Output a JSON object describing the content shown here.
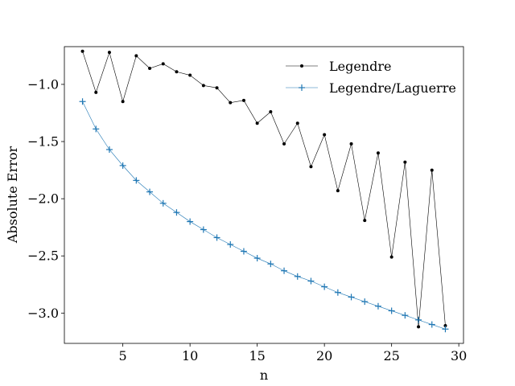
{
  "chart_data": {
    "type": "line",
    "title": "",
    "xlabel": "n",
    "ylabel": "Absolute Error",
    "xlim": [
      0.65,
      30.35
    ],
    "ylim": [
      -3.265,
      -0.67
    ],
    "x_ticks": [
      5,
      10,
      15,
      20,
      25,
      30
    ],
    "x_tick_labels": [
      "5",
      "10",
      "15",
      "20",
      "25",
      "30"
    ],
    "y_ticks": [
      -3.0,
      -2.5,
      -2.0,
      -1.5,
      -1.0
    ],
    "y_tick_labels": [
      "−3.0",
      "−2.5",
      "−2.0",
      "−1.5",
      "−1.0"
    ],
    "grid": false,
    "legend_position": "top-right",
    "x": [
      2,
      3,
      4,
      5,
      6,
      7,
      8,
      9,
      10,
      11,
      12,
      13,
      14,
      15,
      16,
      17,
      18,
      19,
      20,
      21,
      22,
      23,
      24,
      25,
      26,
      27,
      28,
      29
    ],
    "series": [
      {
        "name": "Legendre",
        "color": "#000000",
        "marker": "dot",
        "values": [
          -0.71,
          -1.07,
          -0.72,
          -1.15,
          -0.75,
          -0.86,
          -0.82,
          -0.89,
          -0.92,
          -1.01,
          -1.03,
          -1.16,
          -1.14,
          -1.34,
          -1.24,
          -1.52,
          -1.34,
          -1.72,
          -1.44,
          -1.93,
          -1.52,
          -2.19,
          -1.6,
          -2.51,
          -1.68,
          -3.12,
          -1.75,
          -3.11
        ]
      },
      {
        "name": "Legendre/Laguerre",
        "color": "#1f77b4",
        "marker": "plus",
        "values": [
          -1.15,
          -1.39,
          -1.57,
          -1.71,
          -1.84,
          -1.94,
          -2.04,
          -2.12,
          -2.2,
          -2.27,
          -2.34,
          -2.4,
          -2.46,
          -2.52,
          -2.57,
          -2.63,
          -2.68,
          -2.72,
          -2.77,
          -2.82,
          -2.86,
          -2.9,
          -2.94,
          -2.98,
          -3.02,
          -3.06,
          -3.1,
          -3.14
        ]
      }
    ]
  }
}
